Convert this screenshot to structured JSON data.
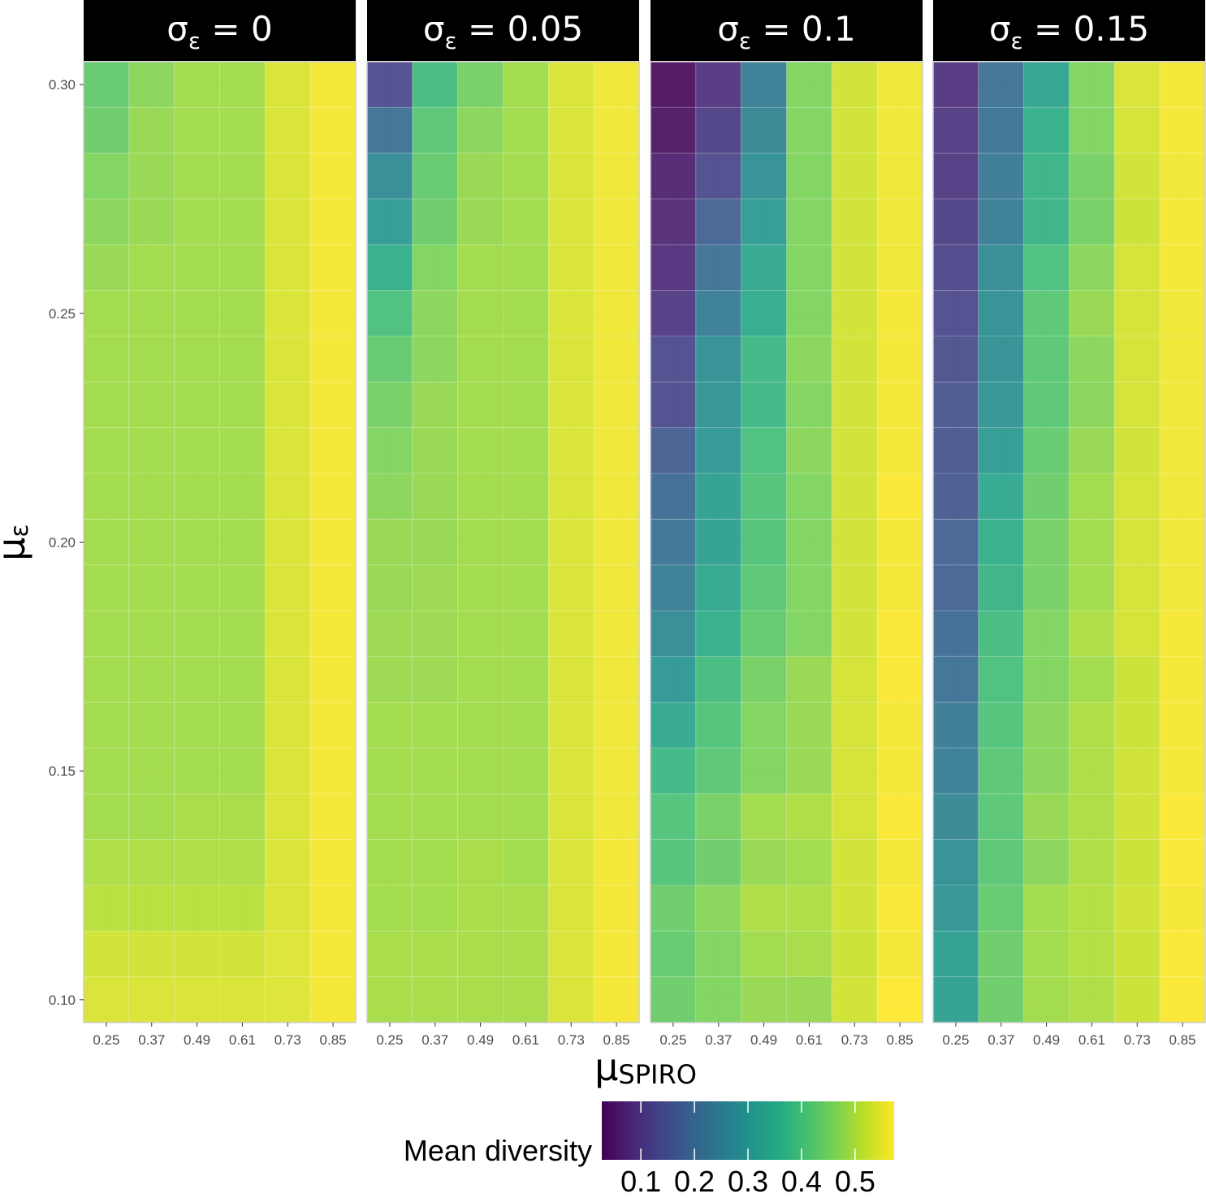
{
  "chart_data": {
    "type": "heatmap",
    "facet_variable": "σε",
    "facets": [
      {
        "label_var": "σ",
        "label_sub": "ε",
        "label_rest": " = 0",
        "sigma": 0,
        "z": [
          [
            0.43,
            0.47,
            0.49,
            0.49,
            0.54,
            0.565
          ],
          [
            0.44,
            0.48,
            0.49,
            0.49,
            0.54,
            0.565
          ],
          [
            0.46,
            0.48,
            0.49,
            0.49,
            0.54,
            0.565
          ],
          [
            0.47,
            0.48,
            0.49,
            0.49,
            0.54,
            0.565
          ],
          [
            0.48,
            0.49,
            0.49,
            0.49,
            0.54,
            0.565
          ],
          [
            0.49,
            0.49,
            0.49,
            0.49,
            0.54,
            0.565
          ],
          [
            0.49,
            0.49,
            0.49,
            0.49,
            0.54,
            0.565
          ],
          [
            0.49,
            0.49,
            0.49,
            0.49,
            0.54,
            0.565
          ],
          [
            0.49,
            0.49,
            0.49,
            0.49,
            0.54,
            0.565
          ],
          [
            0.49,
            0.49,
            0.49,
            0.49,
            0.54,
            0.565
          ],
          [
            0.49,
            0.49,
            0.49,
            0.49,
            0.54,
            0.565
          ],
          [
            0.49,
            0.49,
            0.49,
            0.49,
            0.54,
            0.565
          ],
          [
            0.49,
            0.49,
            0.49,
            0.49,
            0.54,
            0.565
          ],
          [
            0.49,
            0.49,
            0.49,
            0.49,
            0.54,
            0.565
          ],
          [
            0.49,
            0.49,
            0.49,
            0.49,
            0.54,
            0.565
          ],
          [
            0.49,
            0.49,
            0.49,
            0.49,
            0.54,
            0.565
          ],
          [
            0.49,
            0.49,
            0.495,
            0.495,
            0.54,
            0.565
          ],
          [
            0.5,
            0.5,
            0.5,
            0.5,
            0.54,
            0.565
          ],
          [
            0.51,
            0.51,
            0.51,
            0.51,
            0.54,
            0.565
          ],
          [
            0.53,
            0.53,
            0.53,
            0.53,
            0.545,
            0.565
          ],
          [
            0.54,
            0.54,
            0.54,
            0.54,
            0.545,
            0.565
          ]
        ]
      },
      {
        "label_var": "σ",
        "label_sub": "ε",
        "label_rest": " = 0.05",
        "sigma": 0.05,
        "z": [
          [
            0.13,
            0.39,
            0.45,
            0.49,
            0.54,
            0.56
          ],
          [
            0.21,
            0.42,
            0.47,
            0.49,
            0.54,
            0.56
          ],
          [
            0.27,
            0.43,
            0.48,
            0.49,
            0.54,
            0.56
          ],
          [
            0.31,
            0.44,
            0.48,
            0.49,
            0.54,
            0.56
          ],
          [
            0.36,
            0.46,
            0.49,
            0.49,
            0.54,
            0.56
          ],
          [
            0.4,
            0.47,
            0.49,
            0.49,
            0.54,
            0.56
          ],
          [
            0.43,
            0.47,
            0.49,
            0.49,
            0.54,
            0.56
          ],
          [
            0.45,
            0.48,
            0.49,
            0.49,
            0.54,
            0.56
          ],
          [
            0.46,
            0.48,
            0.49,
            0.49,
            0.54,
            0.56
          ],
          [
            0.47,
            0.48,
            0.49,
            0.49,
            0.54,
            0.56
          ],
          [
            0.48,
            0.48,
            0.49,
            0.49,
            0.54,
            0.56
          ],
          [
            0.48,
            0.485,
            0.49,
            0.49,
            0.54,
            0.56
          ],
          [
            0.485,
            0.485,
            0.49,
            0.49,
            0.54,
            0.56
          ],
          [
            0.485,
            0.485,
            0.49,
            0.49,
            0.54,
            0.56
          ],
          [
            0.49,
            0.49,
            0.49,
            0.49,
            0.54,
            0.56
          ],
          [
            0.49,
            0.49,
            0.49,
            0.49,
            0.54,
            0.56
          ],
          [
            0.49,
            0.49,
            0.49,
            0.49,
            0.54,
            0.56
          ],
          [
            0.49,
            0.49,
            0.495,
            0.49,
            0.54,
            0.565
          ],
          [
            0.49,
            0.49,
            0.495,
            0.495,
            0.54,
            0.565
          ],
          [
            0.495,
            0.495,
            0.495,
            0.495,
            0.54,
            0.565
          ],
          [
            0.495,
            0.495,
            0.495,
            0.495,
            0.54,
            0.565
          ]
        ]
      },
      {
        "label_var": "σ",
        "label_sub": "ε",
        "label_rest": " = 0.1",
        "sigma": 0.1,
        "z": [
          [
            0.03,
            0.09,
            0.24,
            0.46,
            0.53,
            0.56
          ],
          [
            0.04,
            0.11,
            0.26,
            0.46,
            0.53,
            0.56
          ],
          [
            0.06,
            0.13,
            0.28,
            0.46,
            0.53,
            0.56
          ],
          [
            0.07,
            0.18,
            0.31,
            0.46,
            0.53,
            0.56
          ],
          [
            0.08,
            0.21,
            0.34,
            0.46,
            0.53,
            0.56
          ],
          [
            0.1,
            0.24,
            0.35,
            0.46,
            0.53,
            0.565
          ],
          [
            0.13,
            0.28,
            0.38,
            0.47,
            0.53,
            0.565
          ],
          [
            0.13,
            0.29,
            0.38,
            0.46,
            0.53,
            0.565
          ],
          [
            0.17,
            0.3,
            0.4,
            0.47,
            0.53,
            0.565
          ],
          [
            0.2,
            0.32,
            0.41,
            0.46,
            0.53,
            0.57
          ],
          [
            0.22,
            0.32,
            0.41,
            0.46,
            0.53,
            0.565
          ],
          [
            0.24,
            0.34,
            0.42,
            0.46,
            0.53,
            0.565
          ],
          [
            0.27,
            0.36,
            0.43,
            0.46,
            0.53,
            0.57
          ],
          [
            0.3,
            0.39,
            0.45,
            0.48,
            0.535,
            0.57
          ],
          [
            0.34,
            0.41,
            0.46,
            0.48,
            0.535,
            0.565
          ],
          [
            0.38,
            0.42,
            0.46,
            0.48,
            0.535,
            0.565
          ],
          [
            0.41,
            0.45,
            0.49,
            0.5,
            0.535,
            0.57
          ],
          [
            0.41,
            0.44,
            0.48,
            0.49,
            0.53,
            0.565
          ],
          [
            0.44,
            0.47,
            0.5,
            0.5,
            0.53,
            0.57
          ],
          [
            0.43,
            0.46,
            0.49,
            0.495,
            0.525,
            0.565
          ],
          [
            0.44,
            0.46,
            0.48,
            0.48,
            0.53,
            0.573
          ]
        ]
      },
      {
        "label_var": "σ",
        "label_sub": "ε",
        "label_rest": " = 0.15",
        "sigma": 0.15,
        "z": [
          [
            0.09,
            0.21,
            0.33,
            0.46,
            0.54,
            0.565
          ],
          [
            0.1,
            0.22,
            0.36,
            0.46,
            0.535,
            0.565
          ],
          [
            0.1,
            0.23,
            0.37,
            0.45,
            0.53,
            0.56
          ],
          [
            0.11,
            0.24,
            0.37,
            0.45,
            0.525,
            0.565
          ],
          [
            0.12,
            0.27,
            0.4,
            0.47,
            0.535,
            0.565
          ],
          [
            0.13,
            0.28,
            0.42,
            0.48,
            0.535,
            0.56
          ],
          [
            0.14,
            0.28,
            0.42,
            0.47,
            0.535,
            0.56
          ],
          [
            0.15,
            0.29,
            0.42,
            0.47,
            0.535,
            0.56
          ],
          [
            0.15,
            0.31,
            0.43,
            0.48,
            0.53,
            0.56
          ],
          [
            0.16,
            0.34,
            0.44,
            0.49,
            0.535,
            0.56
          ],
          [
            0.18,
            0.36,
            0.45,
            0.49,
            0.535,
            0.56
          ],
          [
            0.18,
            0.37,
            0.45,
            0.49,
            0.535,
            0.56
          ],
          [
            0.2,
            0.39,
            0.46,
            0.5,
            0.535,
            0.565
          ],
          [
            0.21,
            0.4,
            0.46,
            0.49,
            0.525,
            0.565
          ],
          [
            0.23,
            0.41,
            0.47,
            0.5,
            0.525,
            0.565
          ],
          [
            0.24,
            0.42,
            0.47,
            0.5,
            0.53,
            0.565
          ],
          [
            0.26,
            0.42,
            0.48,
            0.5,
            0.53,
            0.57
          ],
          [
            0.28,
            0.42,
            0.47,
            0.5,
            0.525,
            0.57
          ],
          [
            0.29,
            0.43,
            0.49,
            0.505,
            0.53,
            0.565
          ],
          [
            0.32,
            0.44,
            0.49,
            0.505,
            0.525,
            0.57
          ],
          [
            0.32,
            0.44,
            0.49,
            0.5,
            0.525,
            0.57
          ]
        ]
      }
    ],
    "x": [
      0.25,
      0.37,
      0.49,
      0.61,
      0.73,
      0.85
    ],
    "y": [
      0.3,
      0.29,
      0.28,
      0.27,
      0.26,
      0.25,
      0.24,
      0.23,
      0.22,
      0.21,
      0.2,
      0.19,
      0.18,
      0.17,
      0.16,
      0.15,
      0.14,
      0.13,
      0.12,
      0.11,
      0.1
    ],
    "x_tick_labels": [
      "0.25",
      "0.37",
      "0.49",
      "0.61",
      "0.73",
      "0.85"
    ],
    "y_ticks": [
      0.3,
      0.25,
      0.2,
      0.15,
      0.1
    ],
    "y_tick_labels": [
      "0.30",
      "0.25",
      "0.20",
      "0.15",
      "0.10"
    ],
    "xlabel_main": "μ",
    "xlabel_sub": "SPIRO",
    "ylabel_main": "μ",
    "ylabel_sub": "ε",
    "xlim": [
      0.19,
      0.91
    ],
    "ylim": [
      0.095,
      0.305
    ],
    "colorbar": {
      "title": "Mean diversity",
      "colormap": "viridis",
      "range": [
        0.027,
        0.573
      ],
      "ticks": [
        0.1,
        0.2,
        0.3,
        0.4,
        0.5
      ],
      "tick_labels": [
        "0.1",
        "0.2",
        "0.3",
        "0.4",
        "0.5"
      ],
      "position": "bottom"
    },
    "grid": true,
    "colors": {
      "strip_background": "#000000",
      "strip_text": "#ffffff",
      "grid": "#ebebeb",
      "panel_border": "#cccccc",
      "tick_text": "#4d4d4d"
    }
  }
}
